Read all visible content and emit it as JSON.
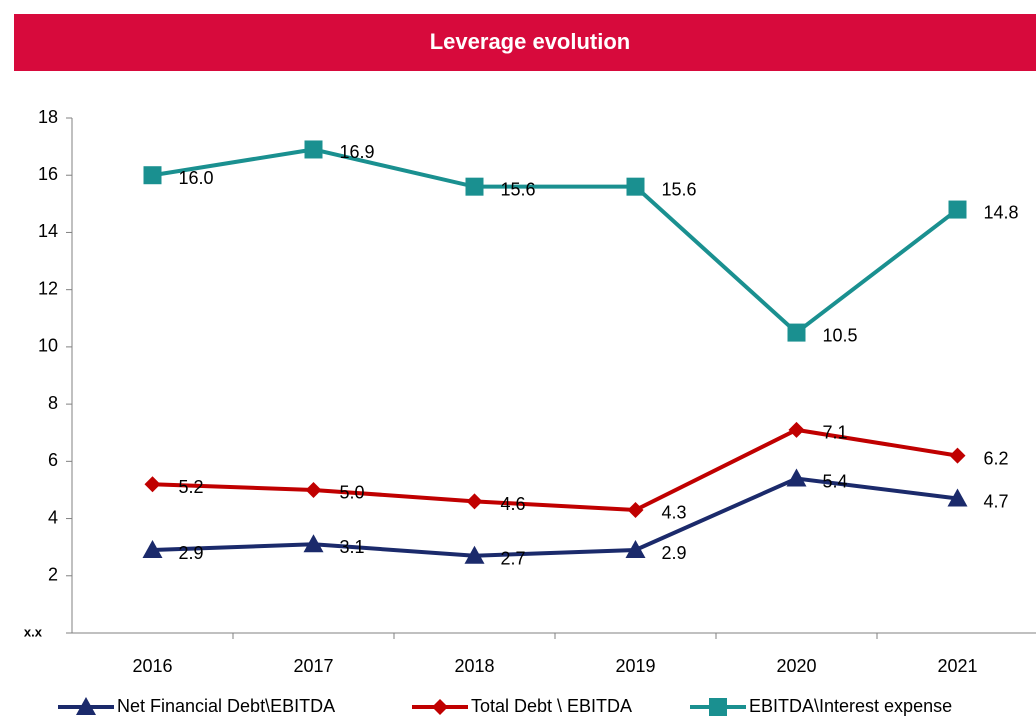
{
  "chart_data": {
    "type": "line",
    "title": "Leverage evolution",
    "categories": [
      "2016",
      "2017",
      "2018",
      "2019",
      "2020",
      "2021"
    ],
    "series": [
      {
        "name": "Net Financial Debt\\EBITDA",
        "color": "#1b2a6b",
        "marker": "triangle",
        "values": [
          2.9,
          3.1,
          2.7,
          2.9,
          5.4,
          4.7
        ],
        "value_labels": [
          "2.9",
          "3.1",
          "2.7",
          "2.9",
          "5.4",
          "4.7"
        ]
      },
      {
        "name": "Total Debt \\ EBITDA",
        "color": "#c00000",
        "marker": "diamond",
        "values": [
          5.2,
          5.0,
          4.6,
          4.3,
          7.1,
          6.2
        ],
        "value_labels": [
          "5.2",
          "5.0",
          "4.6",
          "4.3",
          "7.1",
          "6.2"
        ]
      },
      {
        "name": "EBITDA\\Interest expense",
        "color": "#1a9090",
        "marker": "square",
        "values": [
          16.0,
          16.9,
          15.6,
          15.6,
          10.5,
          14.8
        ],
        "value_labels": [
          "16.0",
          "16.9",
          "15.6",
          "15.6",
          "10.5",
          "14.8"
        ]
      }
    ],
    "ylim": [
      0,
      18
    ],
    "yticks": [
      {
        "value": 0,
        "label": "x.x"
      },
      2,
      4,
      6,
      8,
      10,
      12,
      14,
      16,
      18
    ],
    "legend": "bottom"
  }
}
